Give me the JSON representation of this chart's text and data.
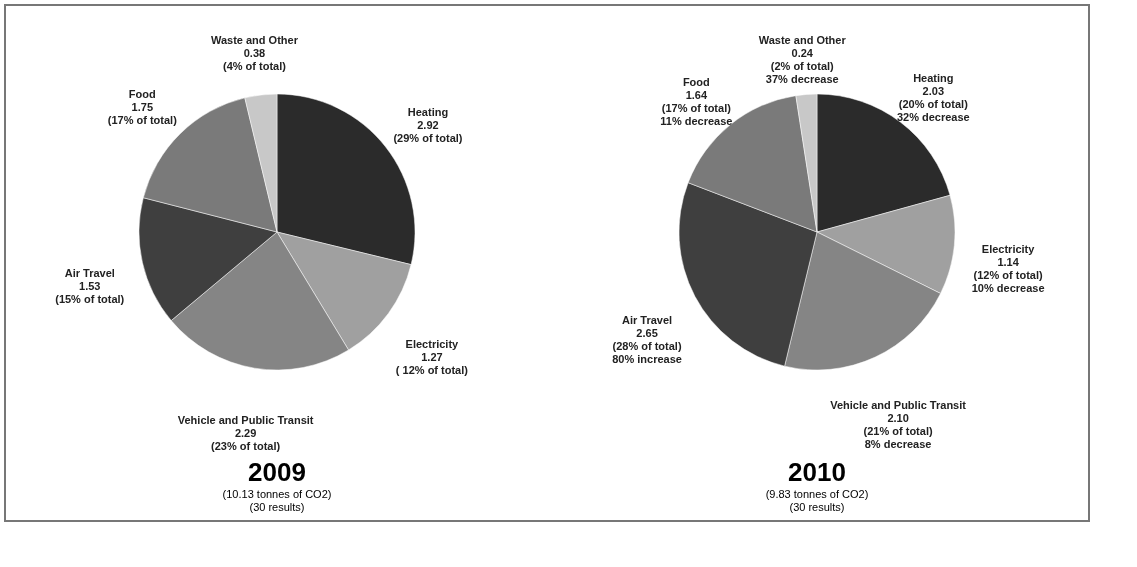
{
  "chart_data": [
    {
      "type": "pie",
      "title": "2009",
      "subtitle": "(10.13 tonnes of CO2)",
      "annotations": [
        "(30 results)"
      ],
      "categories": [
        "Heating",
        "Electricity",
        "Vehicle and Public Transit",
        "Air Travel",
        "Food",
        "Waste and Other"
      ],
      "values": [
        2.92,
        1.27,
        2.29,
        1.53,
        1.75,
        0.38
      ],
      "colors": [
        "#2b2b2b",
        "#a0a0a0",
        "#858585",
        "#3f3f3f",
        "#7a7a7a",
        "#c8c8c8"
      ],
      "value_labels": [
        "2.92\n(29% of total)",
        "1.27\n( 12% of total)",
        "2.29\n(23% of total)",
        "1.53\n(15% of total)",
        "1.75\n(17% of total)",
        "0.38\n(4% of total)"
      ],
      "legend": false
    },
    {
      "type": "pie",
      "title": "2010",
      "subtitle": "(9.83  tonnes of CO2)",
      "annotations": [
        "(30 results)"
      ],
      "categories": [
        "Heating",
        "Electricity",
        "Vehicle and Public Transit",
        "Air Travel",
        "Food",
        "Waste and Other"
      ],
      "values": [
        2.03,
        1.14,
        2.1,
        2.65,
        1.64,
        0.24
      ],
      "colors": [
        "#2b2b2b",
        "#a0a0a0",
        "#858585",
        "#3f3f3f",
        "#7a7a7a",
        "#c8c8c8"
      ],
      "value_labels": [
        "2.03\n(20% of total)\n32% decrease",
        "1.14\n(12% of total)\n10% decrease",
        "2.10\n(21% of total)\n8% decrease",
        "2.65\n(28% of total)\n80% increase",
        "1.64\n(17% of total)\n11% decrease",
        "0.24\n(2% of total)\n37% decrease"
      ],
      "legend": false
    }
  ]
}
